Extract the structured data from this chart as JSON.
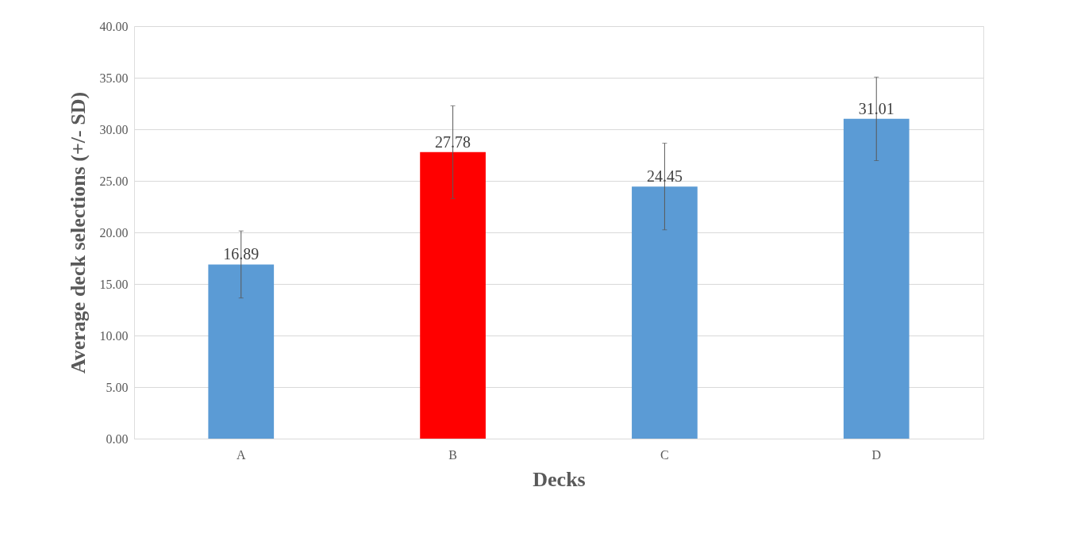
{
  "chart_data": {
    "type": "bar",
    "xlabel": "Decks",
    "ylabel": "Average deck selections (+/- SD)",
    "categories": [
      "A",
      "B",
      "C",
      "D"
    ],
    "values": [
      16.89,
      27.78,
      24.45,
      31.01
    ],
    "colors": [
      "#5b9bd5",
      "#ff0000",
      "#5b9bd5",
      "#5b9bd5"
    ],
    "errors": [
      3.25,
      4.5,
      4.2,
      4.05
    ],
    "ylim": [
      0,
      40
    ],
    "yticks": [
      {
        "value": 0,
        "label": "0.00"
      },
      {
        "value": 5,
        "label": "5.00"
      },
      {
        "value": 10,
        "label": "10.00"
      },
      {
        "value": 15,
        "label": "15.00"
      },
      {
        "value": 20,
        "label": "20.00"
      },
      {
        "value": 25,
        "label": "25.00"
      },
      {
        "value": 30,
        "label": "30.00"
      },
      {
        "value": 35,
        "label": "35.00"
      },
      {
        "value": 40,
        "label": "40.00"
      }
    ],
    "grid": "y",
    "data_labels": true
  }
}
